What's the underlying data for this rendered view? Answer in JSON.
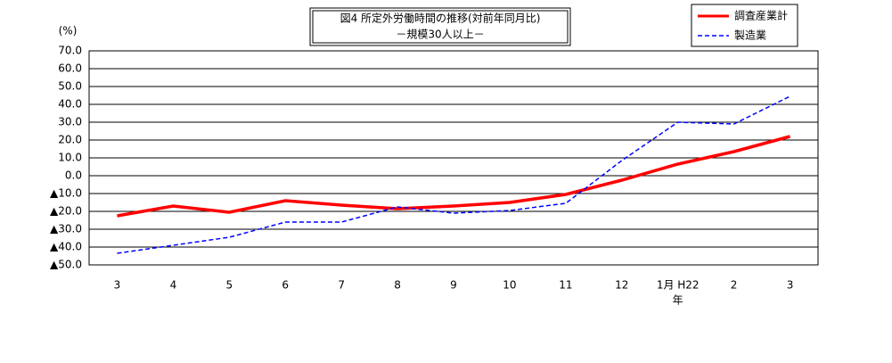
{
  "chart_data": {
    "type": "line",
    "title": "図4  所定外労働時間の推移(対前年同月比)",
    "subtitle": "－規模30人以上－",
    "y_unit": "(%)",
    "categories": [
      "3",
      "4",
      "5",
      "6",
      "7",
      "8",
      "9",
      "10",
      "11",
      "12",
      "1月  H22",
      "2",
      "3"
    ],
    "year_label": "年",
    "series": [
      {
        "name": "調査産業計",
        "color": "#ff0000",
        "dash": false,
        "values": [
          -22.5,
          -17,
          -20.5,
          -14,
          -16.5,
          -18.5,
          -17,
          -15,
          -10.5,
          -2.5,
          6.5,
          13.5,
          22
        ]
      },
      {
        "name": "製造業",
        "color": "#0000ff",
        "dash": true,
        "values": [
          -43.5,
          -39,
          -34.5,
          -26,
          -26,
          -17.5,
          -21,
          -19.5,
          -15.5,
          8.5,
          30,
          29,
          44.5
        ]
      }
    ],
    "ylim": [
      -50,
      70
    ],
    "yticks": [
      {
        "value": 70,
        "label": "70.0"
      },
      {
        "value": 60,
        "label": "60.0"
      },
      {
        "value": 50,
        "label": "50.0"
      },
      {
        "value": 40,
        "label": "40.0"
      },
      {
        "value": 30,
        "label": "30.0"
      },
      {
        "value": 20,
        "label": "20.0"
      },
      {
        "value": 10,
        "label": "10.0"
      },
      {
        "value": 0,
        "label": "0.0"
      },
      {
        "value": -10,
        "label": "▲10.0"
      },
      {
        "value": -20,
        "label": "▲20.0"
      },
      {
        "value": -30,
        "label": "▲30.0"
      },
      {
        "value": -40,
        "label": "▲40.0"
      },
      {
        "value": -50,
        "label": "▲50.0"
      }
    ],
    "grid": true
  }
}
